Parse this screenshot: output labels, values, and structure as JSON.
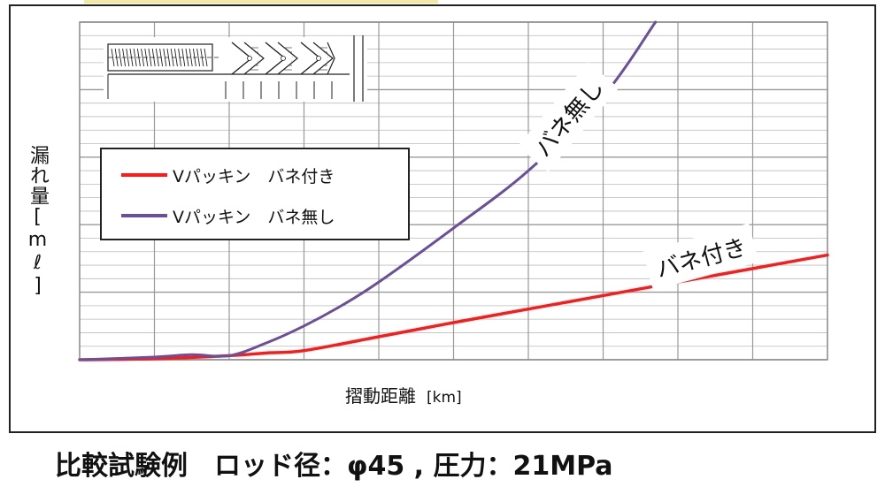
{
  "chart_data": {
    "type": "line",
    "ylabel": "漏れ量[mℓ]",
    "xlabel": "摺動距離",
    "xunit": "[km]",
    "xlim": [
      0,
      100
    ],
    "ylim": [
      0,
      100
    ],
    "grid": true,
    "legend_placement": "top-left",
    "series": [
      {
        "name": "Vパッキン　バネ付き",
        "color": "#ff1a1a",
        "x": [
          0,
          10,
          20,
          25,
          30,
          40,
          50,
          60,
          70,
          80,
          90,
          100
        ],
        "y": [
          0,
          0.3,
          1.2,
          2,
          2.7,
          6.8,
          11,
          15,
          19,
          23,
          27,
          31
        ]
      },
      {
        "name": "Vパッキン　バネ無し",
        "color": "#6a4f9a",
        "x": [
          0,
          10,
          15,
          20,
          25,
          30,
          35,
          40,
          50,
          60,
          70,
          77
        ],
        "y": [
          0,
          0.8,
          1.5,
          1.2,
          5,
          10,
          16,
          23,
          39,
          56,
          78,
          100
        ]
      }
    ],
    "annotations": [
      {
        "name": "no-spring-label",
        "text": "バネ無し"
      },
      {
        "name": "spring-label",
        "text": "バネ付き"
      }
    ]
  },
  "caption": "比較試験例　ロッド径：φ45 , 圧力：21MPa"
}
